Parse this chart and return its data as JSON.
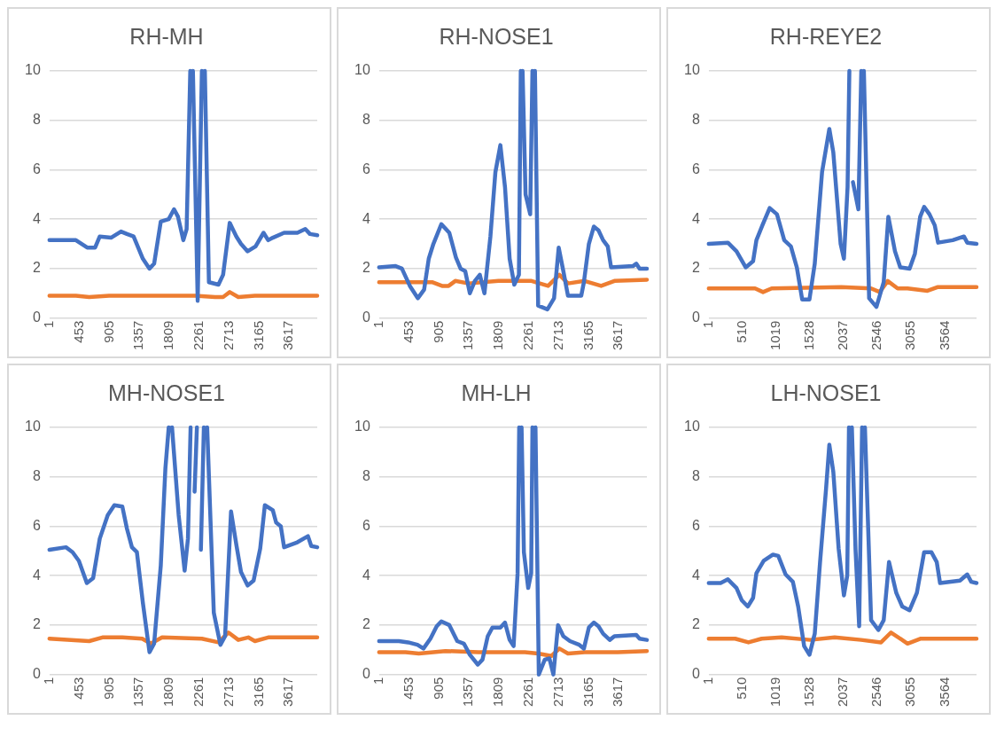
{
  "chart_data": [
    {
      "type": "line",
      "title": "RH-MH",
      "xlim": [
        1,
        4040
      ],
      "xticks": [
        1,
        453,
        905,
        1357,
        1809,
        2261,
        2713,
        3165,
        3617
      ],
      "ylim": [
        0,
        10
      ],
      "yticks": [
        0,
        2,
        4,
        6,
        8,
        10
      ],
      "grid": "y",
      "series": [
        {
          "color": "#4472c4",
          "x": [
            1,
            400,
            570,
            690,
            760,
            930,
            1080,
            1170,
            1270,
            1410,
            1510,
            1580,
            1680,
            1800,
            1880,
            1940,
            2020,
            2070,
            2125,
            2145,
            2165,
            2237,
            2300,
            2320,
            2345,
            2406,
            2550,
            2620,
            2720,
            2820,
            2890,
            2990,
            3110,
            3230,
            3300,
            3370,
            3540,
            3740,
            3860,
            3930,
            4040
          ],
          "values": [
            3.15,
            3.15,
            2.85,
            2.85,
            3.3,
            3.25,
            3.5,
            3.4,
            3.3,
            2.4,
            2.0,
            2.2,
            3.9,
            4.0,
            4.4,
            4.1,
            3.15,
            3.6,
            10,
            null,
            10,
            0.7,
            10,
            null,
            10,
            1.45,
            1.35,
            1.75,
            3.85,
            3.3,
            3.0,
            2.7,
            2.9,
            3.45,
            3.15,
            3.25,
            3.45,
            3.45,
            3.6,
            3.4,
            3.35
          ]
        },
        {
          "color": "#ed7d31",
          "x": [
            1,
            400,
            600,
            900,
            1500,
            2200,
            2500,
            2620,
            2720,
            2850,
            3100,
            3600,
            4040
          ],
          "values": [
            0.9,
            0.9,
            0.85,
            0.9,
            0.9,
            0.9,
            0.85,
            0.85,
            1.05,
            0.85,
            0.9,
            0.9,
            0.9
          ]
        }
      ]
    },
    {
      "type": "line",
      "title": "RH-NOSE1",
      "xlim": [
        1,
        4040
      ],
      "xticks": [
        1,
        453,
        905,
        1357,
        1809,
        2261,
        2713,
        3165,
        3617
      ],
      "ylim": [
        0,
        10
      ],
      "yticks": [
        0,
        2,
        4,
        6,
        8,
        10
      ],
      "grid": "y",
      "series": [
        {
          "color": "#4472c4",
          "x": [
            1,
            250,
            345,
            465,
            585,
            680,
            750,
            820,
            940,
            1060,
            1160,
            1230,
            1300,
            1370,
            1445,
            1520,
            1590,
            1680,
            1755,
            1830,
            1900,
            1970,
            2040,
            2110,
            2138,
            2150,
            2165,
            2210,
            2280,
            2314,
            2330,
            2352,
            2400,
            2540,
            2640,
            2710,
            2780,
            2850,
            2950,
            3050,
            3090,
            3165,
            3240,
            3310,
            3380,
            3450,
            3500,
            3830,
            3880,
            3930,
            4040
          ],
          "values": [
            2.05,
            2.1,
            2.0,
            1.3,
            0.8,
            1.15,
            2.4,
            3.0,
            3.8,
            3.45,
            2.45,
            2.0,
            1.9,
            1.0,
            1.5,
            1.75,
            1.0,
            3.3,
            5.9,
            7.0,
            5.3,
            2.4,
            1.35,
            1.75,
            10,
            null,
            10,
            5.0,
            4.2,
            10,
            null,
            10,
            0.5,
            0.35,
            0.8,
            2.85,
            1.9,
            0.9,
            0.9,
            0.9,
            1.45,
            3.0,
            3.7,
            3.55,
            3.15,
            2.9,
            2.05,
            2.1,
            2.2,
            2.0,
            2.0
          ]
        },
        {
          "color": "#ed7d31",
          "x": [
            1,
            800,
            950,
            1050,
            1150,
            1350,
            1800,
            2300,
            2550,
            2720,
            2850,
            3100,
            3350,
            3550,
            4040
          ],
          "values": [
            1.45,
            1.45,
            1.3,
            1.3,
            1.5,
            1.4,
            1.5,
            1.5,
            1.3,
            1.75,
            1.4,
            1.5,
            1.3,
            1.5,
            1.55
          ]
        }
      ]
    },
    {
      "type": "line",
      "title": "RH-REYE2",
      "xlim": [
        1,
        4040
      ],
      "xticks": [
        1,
        510,
        1019,
        1528,
        2037,
        2546,
        3055,
        3564
      ],
      "ylim": [
        0,
        10
      ],
      "yticks": [
        0,
        2,
        4,
        6,
        8,
        10
      ],
      "grid": "y",
      "series": [
        {
          "color": "#4472c4",
          "x": [
            1,
            290,
            420,
            560,
            670,
            720,
            810,
            920,
            1030,
            1140,
            1240,
            1330,
            1410,
            1520,
            1600,
            1710,
            1820,
            1880,
            1990,
            2040,
            2095,
            2122,
            2150,
            2176,
            2258,
            2302,
            2320,
            2341,
            2420,
            2530,
            2640,
            2710,
            2810,
            2890,
            3030,
            3110,
            3190,
            3250,
            3330,
            3410,
            3460,
            3680,
            3850,
            3900,
            4040
          ],
          "values": [
            3.0,
            3.05,
            2.7,
            2.05,
            2.3,
            3.15,
            3.75,
            4.45,
            4.2,
            3.15,
            2.9,
            2.05,
            0.75,
            0.75,
            2.2,
            5.9,
            7.65,
            6.7,
            3.0,
            2.4,
            5.3,
            10,
            null,
            5.5,
            4.4,
            10,
            null,
            10,
            0.8,
            0.45,
            1.45,
            4.1,
            2.7,
            2.05,
            2.0,
            2.6,
            4.1,
            4.5,
            4.2,
            3.75,
            3.05,
            3.15,
            3.3,
            3.05,
            3.0
          ]
        },
        {
          "color": "#ed7d31",
          "x": [
            1,
            700,
            820,
            950,
            2000,
            2450,
            2580,
            2700,
            2850,
            3000,
            3300,
            3450,
            4040
          ],
          "values": [
            1.2,
            1.2,
            1.05,
            1.2,
            1.25,
            1.2,
            1.05,
            1.5,
            1.2,
            1.2,
            1.1,
            1.25,
            1.25
          ]
        }
      ]
    },
    {
      "type": "line",
      "title": "MH-NOSE1",
      "xlim": [
        1,
        4040
      ],
      "xticks": [
        1,
        453,
        905,
        1357,
        1809,
        2261,
        2713,
        3165,
        3617
      ],
      "ylim": [
        0,
        10
      ],
      "yticks": [
        0,
        2,
        4,
        6,
        8,
        10
      ],
      "grid": "y",
      "series": [
        {
          "color": "#4472c4",
          "x": [
            1,
            250,
            350,
            445,
            565,
            660,
            760,
            880,
            980,
            1100,
            1170,
            1245,
            1320,
            1410,
            1510,
            1580,
            1680,
            1750,
            1800,
            1825,
            1850,
            1950,
            2040,
            2090,
            2130,
            2160,
            2190,
            2225,
            2250,
            2285,
            2330,
            2355,
            2380,
            2480,
            2580,
            2650,
            2740,
            2820,
            2890,
            2990,
            3080,
            3180,
            3250,
            3370,
            3420,
            3490,
            3540,
            3740,
            3900,
            3950,
            4040
          ],
          "values": [
            5.05,
            5.15,
            4.95,
            4.6,
            3.7,
            3.9,
            5.5,
            6.45,
            6.85,
            6.8,
            5.9,
            5.15,
            4.95,
            2.9,
            0.9,
            1.25,
            4.4,
            8.35,
            10,
            null,
            10,
            6.45,
            4.2,
            5.5,
            10,
            null,
            7.4,
            10,
            null,
            5.05,
            10,
            null,
            10,
            2.5,
            1.2,
            1.55,
            6.6,
            5.25,
            4.15,
            3.6,
            3.8,
            5.1,
            6.85,
            6.65,
            6.15,
            6.0,
            5.15,
            5.35,
            5.6,
            5.2,
            5.15
          ]
        },
        {
          "color": "#ed7d31",
          "x": [
            1,
            600,
            800,
            1100,
            1400,
            1530,
            1700,
            2300,
            2550,
            2700,
            2850,
            3000,
            3100,
            3300,
            4040
          ],
          "values": [
            1.45,
            1.35,
            1.5,
            1.5,
            1.45,
            1.25,
            1.5,
            1.45,
            1.3,
            1.7,
            1.4,
            1.5,
            1.35,
            1.5,
            1.5
          ]
        }
      ]
    },
    {
      "type": "line",
      "title": "MH-LH",
      "xlim": [
        1,
        4040
      ],
      "xticks": [
        1,
        453,
        905,
        1357,
        1809,
        2261,
        2713,
        3165,
        3617
      ],
      "ylim": [
        0,
        10
      ],
      "yticks": [
        0,
        2,
        4,
        6,
        8,
        10
      ],
      "grid": "y",
      "series": [
        {
          "color": "#4472c4",
          "x": [
            1,
            300,
            440,
            580,
            670,
            775,
            870,
            940,
            1060,
            1180,
            1280,
            1370,
            1490,
            1560,
            1640,
            1710,
            1830,
            1900,
            1970,
            2030,
            2090,
            2114,
            2130,
            2150,
            2185,
            2250,
            2295,
            2314,
            2340,
            2360,
            2410,
            2500,
            2570,
            2630,
            2700,
            2780,
            2880,
            3020,
            3090,
            3165,
            3240,
            3310,
            3380,
            3480,
            3550,
            3880,
            3930,
            4040
          ],
          "values": [
            1.35,
            1.35,
            1.3,
            1.2,
            1.05,
            1.45,
            1.95,
            2.15,
            2.0,
            1.35,
            1.25,
            0.8,
            0.4,
            0.6,
            1.55,
            1.9,
            1.9,
            2.1,
            1.4,
            1.15,
            4.1,
            10,
            null,
            10,
            4.95,
            3.5,
            4.1,
            10,
            null,
            10,
            0,
            0.6,
            0.65,
            0,
            2.0,
            1.55,
            1.35,
            1.2,
            1.05,
            1.9,
            2.1,
            1.95,
            1.65,
            1.4,
            1.55,
            1.6,
            1.45,
            1.4
          ]
        },
        {
          "color": "#ed7d31",
          "x": [
            1,
            400,
            600,
            1000,
            1500,
            2200,
            2400,
            2600,
            2720,
            2850,
            3100,
            3600,
            4040
          ],
          "values": [
            0.9,
            0.9,
            0.85,
            0.95,
            0.9,
            0.9,
            0.85,
            0.75,
            1.05,
            0.85,
            0.9,
            0.9,
            0.95
          ]
        }
      ]
    },
    {
      "type": "line",
      "title": "LH-NOSE1",
      "xlim": [
        1,
        4040
      ],
      "xticks": [
        1,
        510,
        1019,
        1528,
        2037,
        2546,
        3055,
        3564
      ],
      "ylim": [
        0,
        10
      ],
      "yticks": [
        0,
        2,
        4,
        6,
        8,
        10
      ],
      "grid": "y",
      "series": [
        {
          "color": "#4472c4",
          "x": [
            1,
            180,
            290,
            420,
            500,
            590,
            670,
            720,
            830,
            970,
            1050,
            1160,
            1270,
            1350,
            1440,
            1520,
            1600,
            1680,
            1770,
            1820,
            1880,
            1960,
            2040,
            2090,
            2116,
            2140,
            2160,
            2215,
            2270,
            2314,
            2335,
            2357,
            2450,
            2560,
            2640,
            2720,
            2830,
            2920,
            3030,
            3140,
            3250,
            3360,
            3440,
            3490,
            3790,
            3900,
            3960,
            4040
          ],
          "values": [
            3.7,
            3.7,
            3.85,
            3.5,
            3.0,
            2.75,
            3.1,
            4.1,
            4.6,
            4.85,
            4.8,
            4.05,
            3.75,
            2.75,
            1.15,
            0.8,
            1.65,
            4.55,
            7.5,
            9.3,
            8.2,
            5.1,
            3.2,
            4.0,
            10,
            null,
            10,
            5.05,
            1.95,
            10,
            null,
            10,
            2.2,
            1.8,
            2.2,
            4.55,
            3.3,
            2.75,
            2.6,
            3.3,
            4.95,
            4.95,
            4.55,
            3.7,
            3.8,
            4.05,
            3.75,
            3.7
          ]
        },
        {
          "color": "#ed7d31",
          "x": [
            1,
            400,
            600,
            800,
            1100,
            1530,
            1900,
            2300,
            2600,
            2750,
            3000,
            3200,
            4040
          ],
          "values": [
            1.45,
            1.45,
            1.3,
            1.45,
            1.5,
            1.4,
            1.5,
            1.4,
            1.3,
            1.7,
            1.25,
            1.45,
            1.45
          ]
        }
      ]
    }
  ]
}
